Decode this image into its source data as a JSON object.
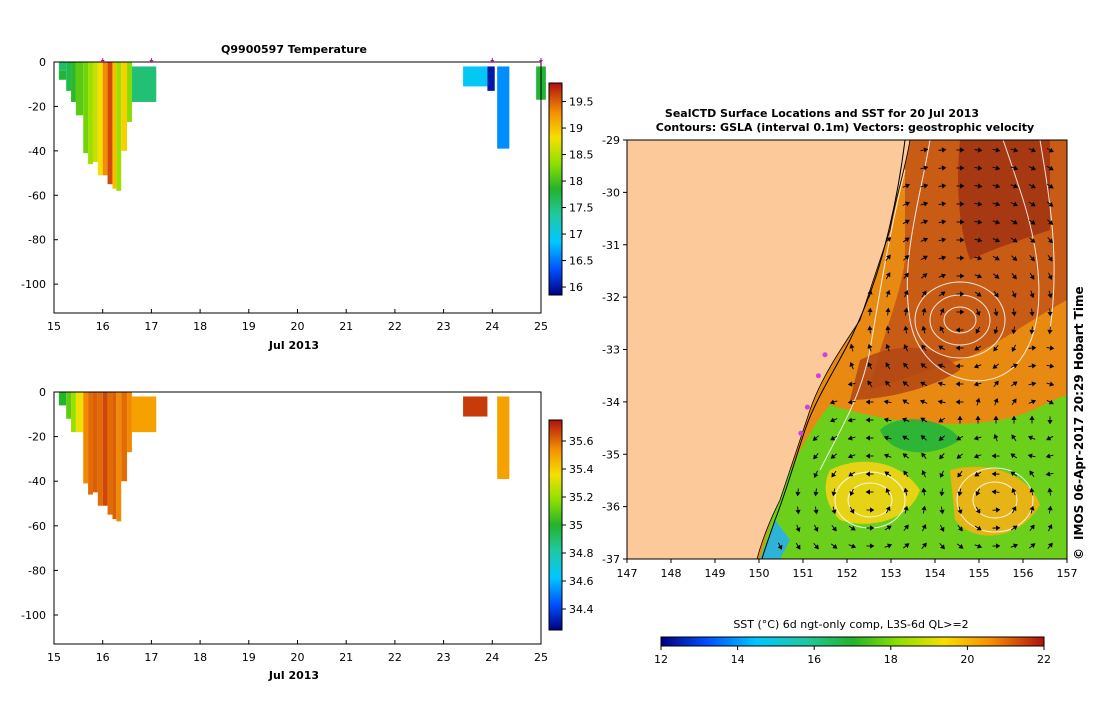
{
  "chart_data": [
    {
      "id": "temp",
      "type": "heatmap",
      "title": "Q9900597  Temperature",
      "xlabel": "Jul 2013",
      "ylabel": "",
      "xlim": [
        15,
        25
      ],
      "ylim": [
        -113,
        0
      ],
      "xticks": [
        15,
        16,
        17,
        18,
        19,
        20,
        21,
        22,
        23,
        24,
        25
      ],
      "yticks": [
        0,
        -20,
        -40,
        -60,
        -80,
        -100
      ],
      "profile_markers_x": [
        16,
        17,
        24,
        25
      ],
      "colorbar": {
        "min": 15.85,
        "max": 19.85,
        "ticks": [
          "19.5",
          "19",
          "18.5",
          "18",
          "17.5",
          "17",
          "16.5",
          "16"
        ],
        "tick_values": [
          19.5,
          19,
          18.5,
          18,
          17.5,
          17,
          16.5,
          16
        ]
      },
      "cells": [
        {
          "x0": 15.1,
          "x1": 15.25,
          "y0": -4,
          "y1": 0,
          "v": 17.6
        },
        {
          "x0": 15.1,
          "x1": 15.25,
          "y0": -8,
          "y1": -4,
          "v": 17.8
        },
        {
          "x0": 15.25,
          "x1": 15.35,
          "y0": -13,
          "y1": 0,
          "v": 17.7
        },
        {
          "x0": 15.35,
          "x1": 15.45,
          "y0": -18,
          "y1": 0,
          "v": 17.9
        },
        {
          "x0": 15.45,
          "x1": 15.6,
          "y0": -24,
          "y1": 0,
          "v": 18.1
        },
        {
          "x0": 15.6,
          "x1": 15.7,
          "y0": -41,
          "y1": 0,
          "v": 18.2
        },
        {
          "x0": 15.7,
          "x1": 15.8,
          "y0": -46,
          "y1": 0,
          "v": 18.4
        },
        {
          "x0": 15.8,
          "x1": 15.9,
          "y0": -45,
          "y1": 0,
          "v": 18.6
        },
        {
          "x0": 15.9,
          "x1": 16.0,
          "y0": -51,
          "y1": 0,
          "v": 18.8
        },
        {
          "x0": 16.0,
          "x1": 16.1,
          "y0": -51,
          "y1": 0,
          "v": 19.3
        },
        {
          "x0": 16.1,
          "x1": 16.2,
          "y0": -55,
          "y1": 0,
          "v": 19.6
        },
        {
          "x0": 16.2,
          "x1": 16.28,
          "y0": -57,
          "y1": 0,
          "v": 19.0
        },
        {
          "x0": 16.28,
          "x1": 16.38,
          "y0": -58,
          "y1": 0,
          "v": 18.4
        },
        {
          "x0": 16.38,
          "x1": 16.5,
          "y0": -40,
          "y1": 0,
          "v": 18.9
        },
        {
          "x0": 16.5,
          "x1": 16.6,
          "y0": -27,
          "y1": 0,
          "v": 18.3
        },
        {
          "x0": 16.6,
          "x1": 17.1,
          "y0": -18,
          "y1": -2,
          "v": 17.55
        },
        {
          "x0": 23.4,
          "x1": 23.9,
          "y0": -11,
          "y1": -2,
          "v": 16.9
        },
        {
          "x0": 23.9,
          "x1": 24.05,
          "y0": -13,
          "y1": -2,
          "v": 16.0
        },
        {
          "x0": 24.1,
          "x1": 24.35,
          "y0": -39,
          "y1": -2,
          "v": 16.6
        },
        {
          "x0": 24.9,
          "x1": 25.1,
          "y0": -17,
          "y1": -2,
          "v": 17.8
        }
      ]
    },
    {
      "id": "sal",
      "type": "heatmap",
      "title": "",
      "xlabel": "Jul 2013",
      "ylabel": "",
      "xlim": [
        15,
        25
      ],
      "ylim": [
        -113,
        0
      ],
      "xticks": [
        15,
        16,
        17,
        18,
        19,
        20,
        21,
        22,
        23,
        24,
        25
      ],
      "yticks": [
        0,
        -20,
        -40,
        -60,
        -80,
        -100
      ],
      "colorbar": {
        "min": 34.25,
        "max": 35.75,
        "ticks": [
          "35.6",
          "35.4",
          "35.2",
          "35",
          "34.8",
          "34.6",
          "34.4"
        ],
        "tick_values": [
          35.6,
          35.4,
          35.2,
          35,
          34.8,
          34.6,
          34.4
        ]
      },
      "cells": [
        {
          "x0": 15.1,
          "x1": 15.25,
          "y0": -6,
          "y1": 0,
          "v": 35.0
        },
        {
          "x0": 15.25,
          "x1": 15.35,
          "y0": -12,
          "y1": 0,
          "v": 35.1
        },
        {
          "x0": 15.35,
          "x1": 15.45,
          "y0": -18,
          "y1": 0,
          "v": 35.2
        },
        {
          "x0": 15.45,
          "x1": 15.6,
          "y0": -18,
          "y1": 0,
          "v": 35.35
        },
        {
          "x0": 15.6,
          "x1": 15.7,
          "y0": -41,
          "y1": 0,
          "v": 35.55
        },
        {
          "x0": 15.7,
          "x1": 15.8,
          "y0": -46,
          "y1": 0,
          "v": 35.6
        },
        {
          "x0": 15.8,
          "x1": 15.9,
          "y0": -45,
          "y1": 0,
          "v": 35.62
        },
        {
          "x0": 15.9,
          "x1": 16.0,
          "y0": -51,
          "y1": 0,
          "v": 35.6
        },
        {
          "x0": 16.0,
          "x1": 16.1,
          "y0": -51,
          "y1": 0,
          "v": 35.66
        },
        {
          "x0": 16.1,
          "x1": 16.2,
          "y0": -55,
          "y1": 0,
          "v": 35.6
        },
        {
          "x0": 16.2,
          "x1": 16.28,
          "y0": -57,
          "y1": 0,
          "v": 35.62
        },
        {
          "x0": 16.28,
          "x1": 16.38,
          "y0": -58,
          "y1": 0,
          "v": 35.55
        },
        {
          "x0": 16.38,
          "x1": 16.5,
          "y0": -40,
          "y1": 0,
          "v": 35.6
        },
        {
          "x0": 16.5,
          "x1": 16.6,
          "y0": -27,
          "y1": 0,
          "v": 35.55
        },
        {
          "x0": 16.6,
          "x1": 17.1,
          "y0": -18,
          "y1": -2,
          "v": 35.5
        },
        {
          "x0": 23.4,
          "x1": 23.9,
          "y0": -11,
          "y1": -2,
          "v": 35.68
        },
        {
          "x0": 24.1,
          "x1": 24.35,
          "y0": -39,
          "y1": -2,
          "v": 35.5
        }
      ]
    },
    {
      "id": "map",
      "type": "heatmap",
      "title": "SealCTD Surface Locations and SST for 20 Jul 2013",
      "subtitle": "Contours: GSLA (interval 0.1m) Vectors: geostrophic velocity",
      "xlim": [
        147,
        157
      ],
      "ylim": [
        -37,
        -29
      ],
      "xticks": [
        147,
        148,
        149,
        150,
        151,
        152,
        153,
        154,
        155,
        156,
        157
      ],
      "yticks": [
        -29,
        -30,
        -31,
        -32,
        -33,
        -34,
        -35,
        -36,
        -37
      ],
      "credit": "IMOS 06-Apr-2017 20:29 Hobart Time",
      "copyright": "©",
      "seal_positions": [
        [
          151.5,
          -33.1
        ],
        [
          151.35,
          -33.5
        ],
        [
          151.1,
          -34.1
        ],
        [
          150.95,
          -34.6
        ]
      ],
      "colorbar": {
        "label": "SST (°C) 6d ngt-only comp, L3S-6d QL>=2",
        "min": 12,
        "max": 22,
        "ticks": [
          "12",
          "14",
          "16",
          "18",
          "20",
          "22"
        ],
        "tick_values": [
          12,
          14,
          16,
          18,
          20,
          22
        ]
      }
    }
  ]
}
